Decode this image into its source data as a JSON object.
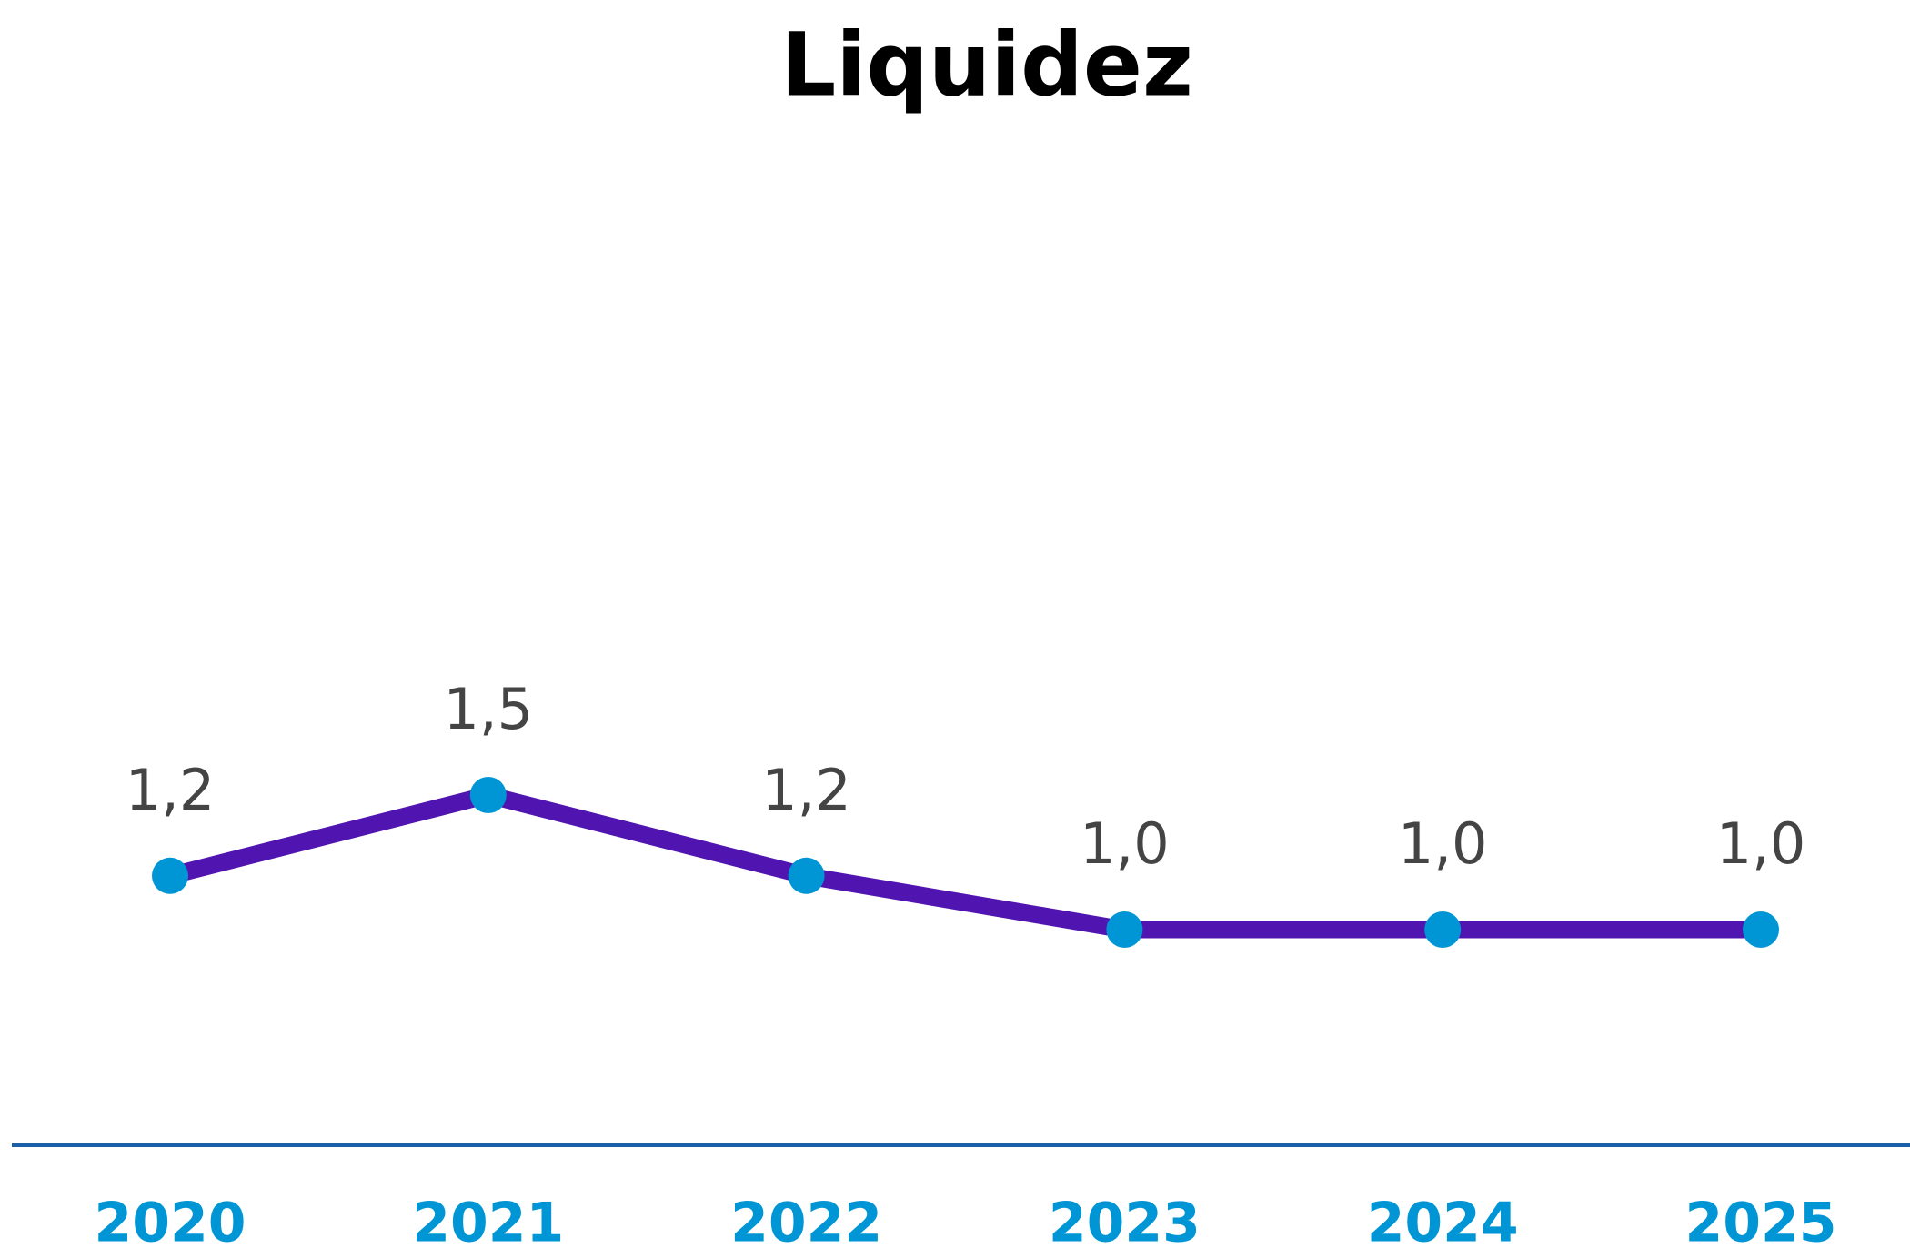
{
  "chart_data": {
    "type": "line",
    "title": "Liquidez",
    "categories": [
      "2020",
      "2021",
      "2022",
      "2023",
      "2024",
      "2025"
    ],
    "series": [
      {
        "name": "Liquidez",
        "color": "#5014b0",
        "marker_color": "#0096d6",
        "values": [
          1.2,
          1.5,
          1.2,
          1.0,
          1.0,
          1.0
        ],
        "value_labels": [
          "1,2",
          "1,5",
          "1,2",
          "1,0",
          "1,0",
          "1,0"
        ]
      }
    ],
    "grid": false
  }
}
